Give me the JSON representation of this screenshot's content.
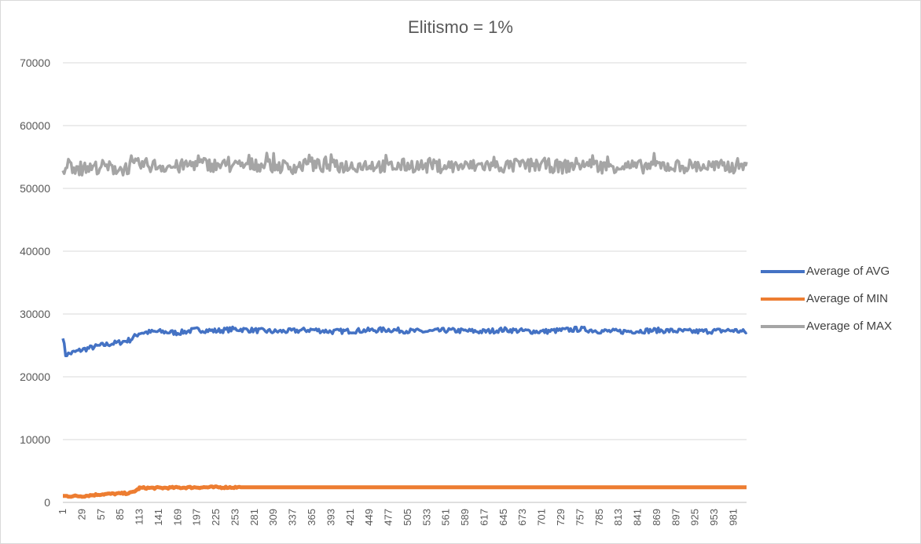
{
  "chart_data": {
    "type": "line",
    "title": "Elitismo = 1%",
    "xlabel": "",
    "ylabel": "",
    "ylim": [
      0,
      70000
    ],
    "yticks": [
      "0",
      "10000",
      "20000",
      "30000",
      "40000",
      "50000",
      "60000",
      "70000"
    ],
    "x_range": [
      1,
      1000
    ],
    "xticks": [
      "1",
      "29",
      "57",
      "85",
      "113",
      "141",
      "169",
      "197",
      "225",
      "253",
      "281",
      "309",
      "337",
      "365",
      "393",
      "421",
      "449",
      "477",
      "505",
      "533",
      "561",
      "589",
      "617",
      "645",
      "673",
      "701",
      "729",
      "757",
      "785",
      "813",
      "841",
      "869",
      "897",
      "925",
      "953",
      "981"
    ],
    "grid": true,
    "legend_position": "right",
    "series": [
      {
        "name": "Average of AVG",
        "color": "#4472C4",
        "x": [
          1,
          5,
          29,
          57,
          85,
          100,
          113,
          141,
          169,
          197,
          225,
          253,
          281,
          309,
          337,
          365,
          393,
          421,
          449,
          477,
          505,
          533,
          561,
          589,
          617,
          645,
          673,
          701,
          729,
          757,
          785,
          813,
          841,
          869,
          897,
          925,
          953,
          981,
          1000
        ],
        "values": [
          26500,
          23500,
          24300,
          25000,
          25500,
          25900,
          27000,
          27200,
          27000,
          27500,
          27300,
          27600,
          27400,
          27200,
          27300,
          27500,
          27200,
          27300,
          27400,
          27500,
          27300,
          27200,
          27400,
          27300,
          27200,
          27500,
          27300,
          27200,
          27400,
          27600,
          27300,
          27200,
          27300,
          27400,
          27300,
          27200,
          27300,
          27400,
          27100
        ],
        "fluctuation": 800
      },
      {
        "name": "Average of MIN",
        "color": "#ED7D31",
        "x": [
          1,
          29,
          57,
          85,
          100,
          110,
          113,
          141,
          169,
          197,
          225,
          253,
          281,
          309,
          337,
          365,
          393,
          421,
          449,
          477,
          505,
          533,
          561,
          589,
          617,
          645,
          673,
          701,
          729,
          757,
          785,
          813,
          841,
          869,
          897,
          925,
          953,
          981,
          1000
        ],
        "values": [
          1000,
          1000,
          1300,
          1400,
          1500,
          2000,
          2300,
          2300,
          2350,
          2400,
          2400,
          2400,
          2400,
          2400,
          2400,
          2400,
          2400,
          2400,
          2400,
          2400,
          2400,
          2400,
          2400,
          2400,
          2400,
          2400,
          2400,
          2400,
          2400,
          2400,
          2400,
          2400,
          2400,
          2400,
          2400,
          2400,
          2400,
          2400,
          2400
        ],
        "fluctuation": 300
      },
      {
        "name": "Average of MAX",
        "color": "#A5A5A5",
        "x": [
          1,
          5,
          29,
          57,
          85,
          113,
          141,
          169,
          197,
          225,
          253,
          281,
          309,
          337,
          365,
          393,
          421,
          449,
          477,
          505,
          533,
          561,
          589,
          617,
          645,
          673,
          701,
          729,
          757,
          785,
          813,
          841,
          869,
          897,
          925,
          953,
          981,
          1000
        ],
        "values": [
          52000,
          54000,
          53000,
          53500,
          53000,
          53800,
          53600,
          53400,
          54000,
          53700,
          53500,
          53800,
          53600,
          53400,
          53700,
          53500,
          53600,
          53800,
          53400,
          53700,
          53500,
          53600,
          53400,
          53700,
          53500,
          53600,
          53800,
          53400,
          53900,
          53500,
          53600,
          53400,
          53700,
          53500,
          53600,
          53400,
          53500,
          54200
        ],
        "fluctuation": 2200
      }
    ]
  }
}
